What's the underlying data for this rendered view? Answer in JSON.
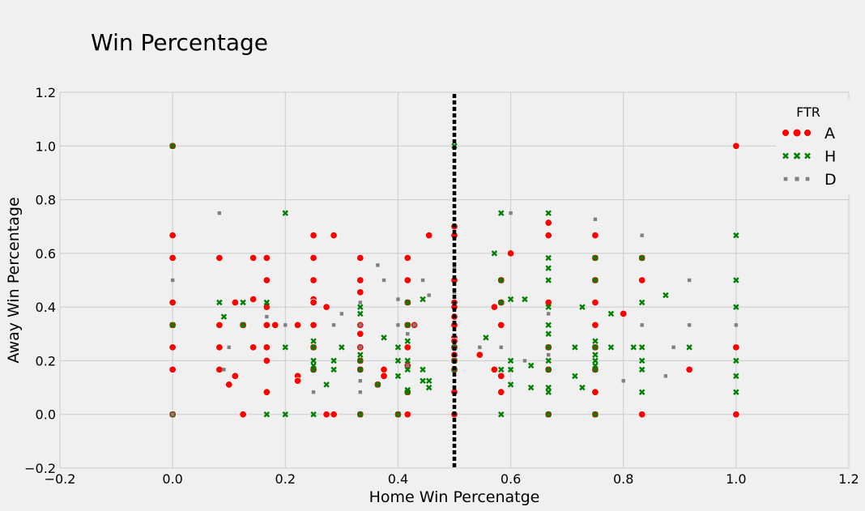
{
  "chart_data": {
    "type": "scatter",
    "title": "Win Percentage",
    "xlabel": "Home Win Percenatge",
    "ylabel": "Away Win Percentage",
    "xlim": [
      -0.2,
      1.2
    ],
    "ylim": [
      -0.2,
      1.2
    ],
    "xticks": [
      -0.2,
      0.0,
      0.2,
      0.4,
      0.6,
      0.8,
      1.0,
      1.2
    ],
    "yticks": [
      -0.2,
      0.0,
      0.2,
      0.4,
      0.6,
      0.8,
      1.0,
      1.2
    ],
    "xtick_labels": [
      "−0.2",
      "0.0",
      "0.2",
      "0.4",
      "0.6",
      "0.8",
      "1.0",
      "1.2"
    ],
    "ytick_labels": [
      "−0.2",
      "0.0",
      "0.2",
      "0.4",
      "0.6",
      "0.8",
      "1.0",
      "1.2"
    ],
    "grid": true,
    "vline": {
      "x": 0.5,
      "style": "dotted",
      "color": "#000000"
    },
    "legend": {
      "title": "FTR",
      "position": "top-right"
    },
    "series": [
      {
        "name": "A",
        "color": "#ff0000",
        "marker": "circle",
        "points": [
          [
            0.0,
            1.0
          ],
          [
            0.0,
            0.667
          ],
          [
            0.0,
            0.583
          ],
          [
            0.0,
            0.417
          ],
          [
            0.0,
            0.333
          ],
          [
            0.0,
            0.25
          ],
          [
            0.0,
            0.167
          ],
          [
            0.0,
            0.0
          ],
          [
            0.083,
            0.583
          ],
          [
            0.083,
            0.333
          ],
          [
            0.083,
            0.25
          ],
          [
            0.083,
            0.167
          ],
          [
            0.1,
            0.111
          ],
          [
            0.111,
            0.143
          ],
          [
            0.111,
            0.417
          ],
          [
            0.125,
            0.333
          ],
          [
            0.125,
            0.0
          ],
          [
            0.143,
            0.429
          ],
          [
            0.143,
            0.25
          ],
          [
            0.143,
            0.583
          ],
          [
            0.167,
            0.583
          ],
          [
            0.167,
            0.5
          ],
          [
            0.167,
            0.4
          ],
          [
            0.167,
            0.333
          ],
          [
            0.167,
            0.25
          ],
          [
            0.167,
            0.2
          ],
          [
            0.167,
            0.083
          ],
          [
            0.182,
            0.333
          ],
          [
            0.222,
            0.333
          ],
          [
            0.222,
            0.143
          ],
          [
            0.222,
            0.125
          ],
          [
            0.25,
            0.667
          ],
          [
            0.25,
            0.583
          ],
          [
            0.25,
            0.5
          ],
          [
            0.25,
            0.429
          ],
          [
            0.25,
            0.417
          ],
          [
            0.25,
            0.333
          ],
          [
            0.25,
            0.25
          ],
          [
            0.25,
            0.167
          ],
          [
            0.273,
            0.4
          ],
          [
            0.273,
            0.0
          ],
          [
            0.286,
            0.667
          ],
          [
            0.286,
            0.0
          ],
          [
            0.333,
            0.583
          ],
          [
            0.333,
            0.5
          ],
          [
            0.333,
            0.455
          ],
          [
            0.333,
            0.333
          ],
          [
            0.333,
            0.3
          ],
          [
            0.333,
            0.25
          ],
          [
            0.333,
            0.2
          ],
          [
            0.333,
            0.167
          ],
          [
            0.333,
            0.0
          ],
          [
            0.364,
            0.111
          ],
          [
            0.375,
            0.167
          ],
          [
            0.375,
            0.143
          ],
          [
            0.4,
            0.0
          ],
          [
            0.417,
            0.583
          ],
          [
            0.417,
            0.5
          ],
          [
            0.417,
            0.417
          ],
          [
            0.417,
            0.333
          ],
          [
            0.417,
            0.25
          ],
          [
            0.417,
            0.182
          ],
          [
            0.417,
            0.083
          ],
          [
            0.417,
            0.0
          ],
          [
            0.429,
            0.333
          ],
          [
            0.455,
            0.667
          ],
          [
            0.5,
            0.7
          ],
          [
            0.5,
            0.667
          ],
          [
            0.5,
            0.5
          ],
          [
            0.5,
            0.417
          ],
          [
            0.5,
            0.4
          ],
          [
            0.5,
            0.364
          ],
          [
            0.5,
            0.333
          ],
          [
            0.5,
            0.286
          ],
          [
            0.5,
            0.273
          ],
          [
            0.5,
            0.25
          ],
          [
            0.5,
            0.222
          ],
          [
            0.5,
            0.2
          ],
          [
            0.5,
            0.167
          ],
          [
            0.5,
            0.083
          ],
          [
            0.5,
            0.0
          ],
          [
            0.545,
            0.222
          ],
          [
            0.571,
            0.4
          ],
          [
            0.571,
            0.167
          ],
          [
            0.583,
            0.5
          ],
          [
            0.583,
            0.417
          ],
          [
            0.583,
            0.333
          ],
          [
            0.583,
            0.143
          ],
          [
            0.583,
            0.083
          ],
          [
            0.6,
            0.6
          ],
          [
            0.667,
            0.714
          ],
          [
            0.667,
            0.667
          ],
          [
            0.667,
            0.417
          ],
          [
            0.667,
            0.25
          ],
          [
            0.667,
            0.167
          ],
          [
            0.667,
            0.0
          ],
          [
            0.75,
            0.667
          ],
          [
            0.75,
            0.583
          ],
          [
            0.75,
            0.5
          ],
          [
            0.75,
            0.417
          ],
          [
            0.75,
            0.333
          ],
          [
            0.75,
            0.25
          ],
          [
            0.75,
            0.167
          ],
          [
            0.75,
            0.083
          ],
          [
            0.75,
            0.0
          ],
          [
            0.8,
            0.375
          ],
          [
            0.833,
            0.583
          ],
          [
            0.833,
            0.5
          ],
          [
            0.833,
            0.0
          ],
          [
            0.917,
            0.167
          ],
          [
            1.0,
            1.0
          ],
          [
            1.0,
            0.25
          ],
          [
            1.0,
            0.0
          ]
        ]
      },
      {
        "name": "H",
        "color": "#008000",
        "marker": "x",
        "points": [
          [
            0.0,
            1.0
          ],
          [
            0.0,
            0.333
          ],
          [
            0.0,
            0.0
          ],
          [
            0.083,
            0.417
          ],
          [
            0.091,
            0.364
          ],
          [
            0.125,
            0.417
          ],
          [
            0.125,
            0.333
          ],
          [
            0.167,
            0.417
          ],
          [
            0.167,
            0.0
          ],
          [
            0.2,
            0.75
          ],
          [
            0.2,
            0.25
          ],
          [
            0.2,
            0.0
          ],
          [
            0.25,
            0.273
          ],
          [
            0.25,
            0.25
          ],
          [
            0.25,
            0.2
          ],
          [
            0.25,
            0.182
          ],
          [
            0.25,
            0.167
          ],
          [
            0.25,
            0.0
          ],
          [
            0.273,
            0.111
          ],
          [
            0.286,
            0.2
          ],
          [
            0.286,
            0.167
          ],
          [
            0.3,
            0.25
          ],
          [
            0.333,
            0.4
          ],
          [
            0.333,
            0.375
          ],
          [
            0.333,
            0.222
          ],
          [
            0.333,
            0.2
          ],
          [
            0.333,
            0.167
          ],
          [
            0.333,
            0.0
          ],
          [
            0.364,
            0.111
          ],
          [
            0.375,
            0.286
          ],
          [
            0.4,
            0.25
          ],
          [
            0.4,
            0.2
          ],
          [
            0.4,
            0.143
          ],
          [
            0.4,
            0.0
          ],
          [
            0.417,
            0.417
          ],
          [
            0.417,
            0.333
          ],
          [
            0.417,
            0.273
          ],
          [
            0.417,
            0.2
          ],
          [
            0.417,
            0.167
          ],
          [
            0.417,
            0.091
          ],
          [
            0.417,
            0.083
          ],
          [
            0.444,
            0.429
          ],
          [
            0.444,
            0.167
          ],
          [
            0.444,
            0.125
          ],
          [
            0.455,
            0.125
          ],
          [
            0.455,
            0.1
          ],
          [
            0.5,
            1.0
          ],
          [
            0.5,
            0.25
          ],
          [
            0.5,
            0.2
          ],
          [
            0.5,
            0.167
          ],
          [
            0.556,
            0.286
          ],
          [
            0.571,
            0.6
          ],
          [
            0.583,
            0.75
          ],
          [
            0.583,
            0.5
          ],
          [
            0.583,
            0.417
          ],
          [
            0.583,
            0.167
          ],
          [
            0.583,
            0.0
          ],
          [
            0.6,
            0.429
          ],
          [
            0.6,
            0.2
          ],
          [
            0.6,
            0.167
          ],
          [
            0.6,
            0.111
          ],
          [
            0.625,
            0.429
          ],
          [
            0.636,
            0.182
          ],
          [
            0.636,
            0.1
          ],
          [
            0.667,
            0.75
          ],
          [
            0.667,
            0.583
          ],
          [
            0.667,
            0.545
          ],
          [
            0.667,
            0.5
          ],
          [
            0.667,
            0.4
          ],
          [
            0.667,
            0.333
          ],
          [
            0.667,
            0.3
          ],
          [
            0.667,
            0.25
          ],
          [
            0.667,
            0.2
          ],
          [
            0.667,
            0.167
          ],
          [
            0.667,
            0.1
          ],
          [
            0.667,
            0.083
          ],
          [
            0.667,
            0.0
          ],
          [
            0.714,
            0.25
          ],
          [
            0.714,
            0.143
          ],
          [
            0.727,
            0.4
          ],
          [
            0.727,
            0.1
          ],
          [
            0.75,
            0.583
          ],
          [
            0.75,
            0.5
          ],
          [
            0.75,
            0.273
          ],
          [
            0.75,
            0.25
          ],
          [
            0.75,
            0.222
          ],
          [
            0.75,
            0.2
          ],
          [
            0.75,
            0.182
          ],
          [
            0.75,
            0.167
          ],
          [
            0.75,
            0.0
          ],
          [
            0.778,
            0.375
          ],
          [
            0.778,
            0.25
          ],
          [
            0.818,
            0.25
          ],
          [
            0.833,
            0.583
          ],
          [
            0.833,
            0.417
          ],
          [
            0.833,
            0.25
          ],
          [
            0.833,
            0.2
          ],
          [
            0.833,
            0.167
          ],
          [
            0.833,
            0.083
          ],
          [
            0.875,
            0.444
          ],
          [
            0.917,
            0.25
          ],
          [
            1.0,
            0.667
          ],
          [
            1.0,
            0.5
          ],
          [
            1.0,
            0.4
          ],
          [
            1.0,
            0.2
          ],
          [
            1.0,
            0.143
          ],
          [
            1.0,
            0.083
          ]
        ]
      },
      {
        "name": "D",
        "color": "#808080",
        "marker": "square",
        "points": [
          [
            0.0,
            0.5
          ],
          [
            0.0,
            0.0
          ],
          [
            0.083,
            0.75
          ],
          [
            0.091,
            0.167
          ],
          [
            0.1,
            0.25
          ],
          [
            0.167,
            0.364
          ],
          [
            0.2,
            0.333
          ],
          [
            0.25,
            0.083
          ],
          [
            0.286,
            0.333
          ],
          [
            0.3,
            0.375
          ],
          [
            0.333,
            0.417
          ],
          [
            0.333,
            0.333
          ],
          [
            0.333,
            0.25
          ],
          [
            0.333,
            0.125
          ],
          [
            0.333,
            0.083
          ],
          [
            0.364,
            0.556
          ],
          [
            0.375,
            0.5
          ],
          [
            0.4,
            0.429
          ],
          [
            0.4,
            0.333
          ],
          [
            0.417,
            0.3
          ],
          [
            0.417,
            0.182
          ],
          [
            0.429,
            0.333
          ],
          [
            0.444,
            0.5
          ],
          [
            0.455,
            0.444
          ],
          [
            0.5,
            0.545
          ],
          [
            0.5,
            0.455
          ],
          [
            0.5,
            0.1
          ],
          [
            0.545,
            0.25
          ],
          [
            0.583,
            0.25
          ],
          [
            0.6,
            0.75
          ],
          [
            0.625,
            0.2
          ],
          [
            0.667,
            0.375
          ],
          [
            0.667,
            0.222
          ],
          [
            0.75,
            0.727
          ],
          [
            0.8,
            0.125
          ],
          [
            0.833,
            0.667
          ],
          [
            0.833,
            0.333
          ],
          [
            0.875,
            0.143
          ],
          [
            0.889,
            0.25
          ],
          [
            0.917,
            0.5
          ],
          [
            0.917,
            0.333
          ],
          [
            1.0,
            0.333
          ]
        ]
      }
    ]
  }
}
